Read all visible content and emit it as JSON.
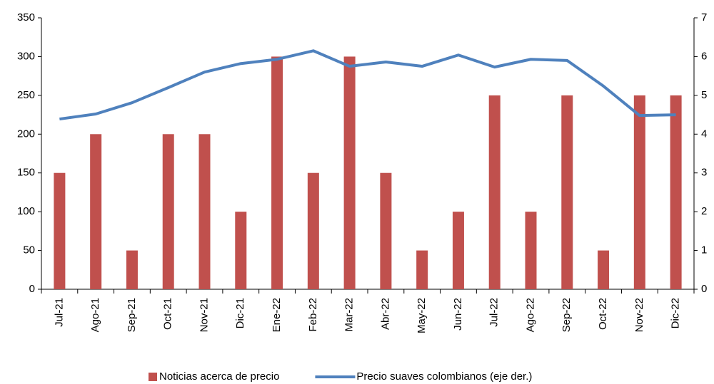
{
  "chart_data": {
    "type": "bar",
    "categories": [
      "Jul-21",
      "Ago-21",
      "Sep-21",
      "Oct-21",
      "Nov-21",
      "Dic-21",
      "Ene-22",
      "Feb-22",
      "Mar-22",
      "Abr-22",
      "May-22",
      "Jun-22",
      "Jul-22",
      "Ago-22",
      "Sep-22",
      "Oct-22",
      "Nov-22",
      "Dic-22"
    ],
    "series": [
      {
        "name": "Noticias acerca de precio",
        "color": "#c0504d",
        "type": "bar",
        "values": [
          150,
          200,
          50,
          200,
          200,
          100,
          300,
          150,
          300,
          150,
          50,
          100,
          250,
          100,
          250,
          50,
          250,
          250
        ]
      },
      {
        "name": "Precio suaves colombianos (eje der.)",
        "color": "#4f81bd",
        "type": "line",
        "axis": "y2",
        "values": [
          4.39,
          4.52,
          4.81,
          5.2,
          5.6,
          5.82,
          5.93,
          6.15,
          5.75,
          5.86,
          5.75,
          6.04,
          5.73,
          5.93,
          5.9,
          5.24,
          4.48,
          4.5
        ]
      }
    ],
    "ylim": [
      0,
      350
    ],
    "yticks": [
      0,
      50,
      100,
      150,
      200,
      250,
      300,
      350
    ],
    "y2lim": [
      0,
      7
    ],
    "y2ticks": [
      0,
      1,
      2,
      3,
      4,
      5,
      6,
      7
    ],
    "grid": false,
    "legend": "bottom"
  }
}
